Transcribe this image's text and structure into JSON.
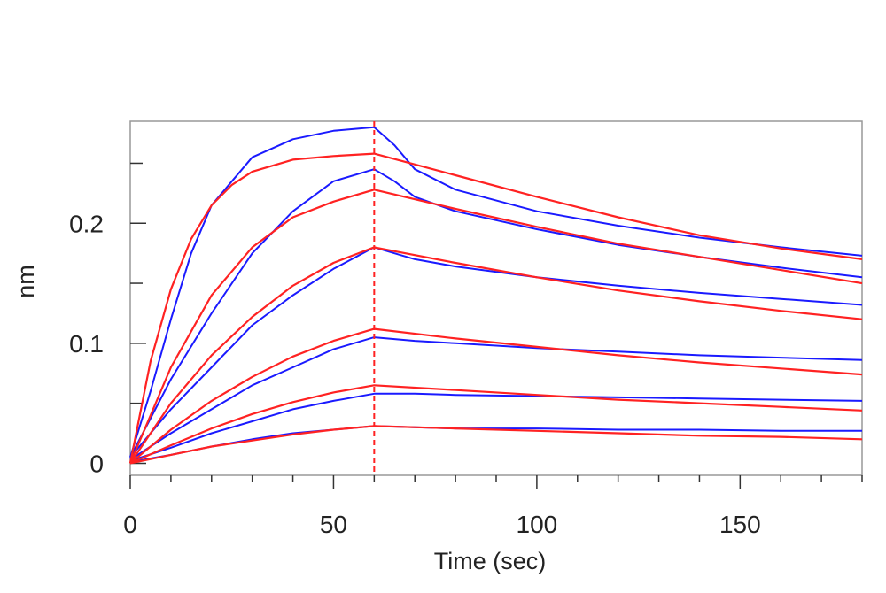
{
  "chart_data": {
    "type": "line",
    "title": "",
    "xlabel": "Time (sec)",
    "ylabel": "nm",
    "xlim": [
      0,
      180
    ],
    "ylim": [
      -0.01,
      0.285
    ],
    "x_ticks": [
      0,
      50,
      100,
      150
    ],
    "x_tick_labels": [
      "0",
      "50",
      "100",
      "150"
    ],
    "y_ticks": [
      0,
      0.1,
      0.2
    ],
    "y_tick_labels": [
      "0",
      "0.1",
      "0.2"
    ],
    "x_minor_step": 10,
    "y_minor_step": 0.05,
    "grid": false,
    "legend": "none",
    "phase_marker_x": 60,
    "colors": {
      "measured": "#1a1aff",
      "fit": "#ff2222",
      "marker": "#ff2222",
      "frame": "#999999"
    },
    "series": [
      {
        "kind": "measured",
        "x": [
          0,
          5,
          10,
          15,
          20,
          30,
          40,
          50,
          60,
          65,
          70,
          80,
          100,
          120,
          140,
          160,
          180
        ],
        "values": [
          0.005,
          0.06,
          0.12,
          0.175,
          0.215,
          0.255,
          0.27,
          0.277,
          0.28,
          0.265,
          0.245,
          0.228,
          0.21,
          0.198,
          0.188,
          0.18,
          0.173
        ]
      },
      {
        "kind": "measured",
        "x": [
          0,
          10,
          20,
          30,
          40,
          50,
          60,
          65,
          70,
          80,
          100,
          120,
          140,
          160,
          180
        ],
        "values": [
          0.005,
          0.07,
          0.125,
          0.175,
          0.21,
          0.235,
          0.245,
          0.235,
          0.222,
          0.21,
          0.195,
          0.182,
          0.172,
          0.163,
          0.155
        ]
      },
      {
        "kind": "measured",
        "x": [
          0,
          10,
          20,
          30,
          40,
          50,
          60,
          70,
          80,
          100,
          120,
          140,
          160,
          180
        ],
        "values": [
          0.005,
          0.045,
          0.08,
          0.115,
          0.14,
          0.162,
          0.18,
          0.17,
          0.164,
          0.155,
          0.148,
          0.142,
          0.137,
          0.132
        ]
      },
      {
        "kind": "measured",
        "x": [
          0,
          10,
          20,
          30,
          40,
          50,
          60,
          70,
          80,
          100,
          120,
          140,
          160,
          180
        ],
        "values": [
          0.003,
          0.025,
          0.045,
          0.065,
          0.08,
          0.095,
          0.105,
          0.102,
          0.1,
          0.096,
          0.093,
          0.09,
          0.088,
          0.086
        ]
      },
      {
        "kind": "measured",
        "x": [
          0,
          10,
          20,
          30,
          40,
          50,
          60,
          70,
          80,
          100,
          120,
          140,
          160,
          180
        ],
        "values": [
          0.002,
          0.013,
          0.025,
          0.035,
          0.045,
          0.052,
          0.058,
          0.058,
          0.057,
          0.056,
          0.055,
          0.054,
          0.053,
          0.052
        ]
      },
      {
        "kind": "measured",
        "x": [
          0,
          10,
          20,
          30,
          40,
          50,
          60,
          70,
          80,
          100,
          120,
          140,
          160,
          180
        ],
        "values": [
          0.001,
          0.007,
          0.014,
          0.02,
          0.025,
          0.028,
          0.031,
          0.03,
          0.029,
          0.029,
          0.028,
          0.028,
          0.027,
          0.027
        ]
      },
      {
        "kind": "fit",
        "x": [
          0,
          5,
          10,
          15,
          20,
          25,
          30,
          40,
          50,
          60,
          80,
          100,
          120,
          140,
          160,
          180
        ],
        "values": [
          0.0,
          0.085,
          0.145,
          0.187,
          0.215,
          0.232,
          0.243,
          0.253,
          0.256,
          0.258,
          0.24,
          0.222,
          0.205,
          0.19,
          0.179,
          0.17
        ]
      },
      {
        "kind": "fit",
        "x": [
          0,
          10,
          20,
          30,
          40,
          50,
          60,
          80,
          100,
          120,
          140,
          160,
          180
        ],
        "values": [
          0.0,
          0.08,
          0.14,
          0.18,
          0.205,
          0.218,
          0.228,
          0.212,
          0.197,
          0.183,
          0.172,
          0.161,
          0.15
        ]
      },
      {
        "kind": "fit",
        "x": [
          0,
          10,
          20,
          30,
          40,
          50,
          60,
          80,
          100,
          120,
          140,
          160,
          180
        ],
        "values": [
          0.0,
          0.05,
          0.09,
          0.122,
          0.148,
          0.167,
          0.18,
          0.167,
          0.155,
          0.144,
          0.135,
          0.127,
          0.12
        ]
      },
      {
        "kind": "fit",
        "x": [
          0,
          10,
          20,
          30,
          40,
          50,
          60,
          80,
          100,
          120,
          140,
          160,
          180
        ],
        "values": [
          0.0,
          0.028,
          0.052,
          0.072,
          0.089,
          0.102,
          0.112,
          0.104,
          0.097,
          0.09,
          0.084,
          0.079,
          0.074
        ]
      },
      {
        "kind": "fit",
        "x": [
          0,
          10,
          20,
          30,
          40,
          50,
          60,
          80,
          100,
          120,
          140,
          160,
          180
        ],
        "values": [
          0.0,
          0.015,
          0.029,
          0.041,
          0.051,
          0.059,
          0.065,
          0.061,
          0.057,
          0.053,
          0.05,
          0.047,
          0.044
        ]
      },
      {
        "kind": "fit",
        "x": [
          0,
          10,
          20,
          30,
          40,
          50,
          60,
          80,
          100,
          120,
          140,
          160,
          180
        ],
        "values": [
          0.0,
          0.007,
          0.014,
          0.019,
          0.024,
          0.028,
          0.031,
          0.029,
          0.027,
          0.025,
          0.023,
          0.022,
          0.02
        ]
      }
    ]
  }
}
